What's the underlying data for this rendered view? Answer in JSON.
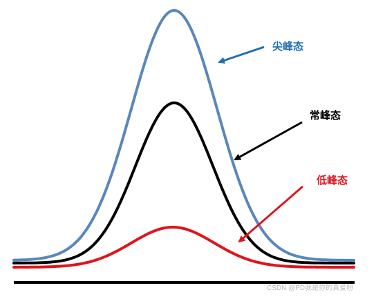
{
  "labels": {
    "peaked": "尖峰态",
    "normal": "常峰态",
    "flat": "低峰态"
  },
  "watermark": "CSDN @PD我是你的真爱粉",
  "colors": {
    "peaked": "#5b86bc",
    "peaked_arrow": "#1f6fb2",
    "normal": "#000000",
    "flat": "#e0141c",
    "baseline": "#000000",
    "watermark": "#b9b9b9"
  }
}
